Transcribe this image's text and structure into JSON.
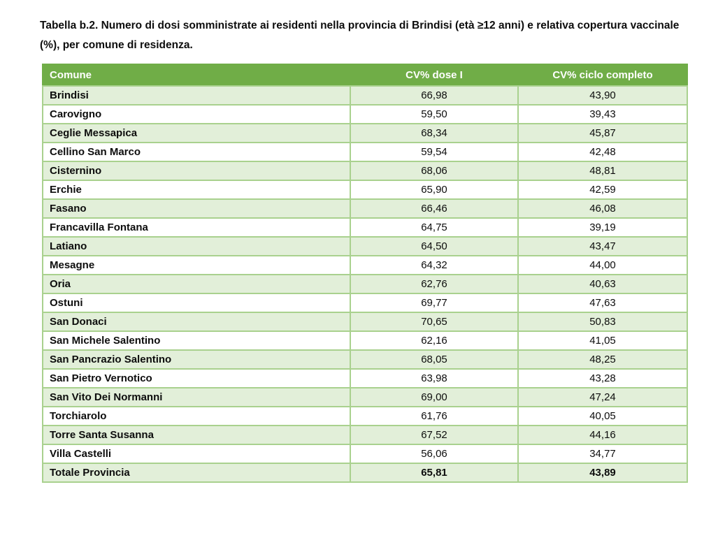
{
  "page": {
    "title": "Tabella b.2. Numero di dosi somministrate ai residenti nella provincia di Brindisi (età ≥12 anni) e relativa copertura vaccinale (%), per comune di residenza."
  },
  "colors": {
    "header_bg": "#70AD47",
    "header_text": "#FFFFFF",
    "row_bg": "#FFFFFF",
    "row_alt_bg": "#E2EFD9",
    "border": "#A9D18E",
    "text": "#0D0D0D"
  },
  "table": {
    "columns": [
      "Comune",
      "CV% dose I",
      "CV% ciclo completo"
    ],
    "rows": [
      {
        "comune": "Brindisi",
        "dose1": "66,98",
        "ciclo": "43,90"
      },
      {
        "comune": "Carovigno",
        "dose1": "59,50",
        "ciclo": "39,43"
      },
      {
        "comune": "Ceglie Messapica",
        "dose1": "68,34",
        "ciclo": "45,87"
      },
      {
        "comune": "Cellino San Marco",
        "dose1": "59,54",
        "ciclo": "42,48"
      },
      {
        "comune": "Cisternino",
        "dose1": "68,06",
        "ciclo": "48,81"
      },
      {
        "comune": "Erchie",
        "dose1": "65,90",
        "ciclo": "42,59"
      },
      {
        "comune": "Fasano",
        "dose1": "66,46",
        "ciclo": "46,08"
      },
      {
        "comune": "Francavilla Fontana",
        "dose1": "64,75",
        "ciclo": "39,19"
      },
      {
        "comune": "Latiano",
        "dose1": "64,50",
        "ciclo": "43,47"
      },
      {
        "comune": "Mesagne",
        "dose1": "64,32",
        "ciclo": "44,00"
      },
      {
        "comune": "Oria",
        "dose1": "62,76",
        "ciclo": "40,63"
      },
      {
        "comune": "Ostuni",
        "dose1": "69,77",
        "ciclo": "47,63"
      },
      {
        "comune": "San Donaci",
        "dose1": "70,65",
        "ciclo": "50,83"
      },
      {
        "comune": "San Michele Salentino",
        "dose1": "62,16",
        "ciclo": "41,05"
      },
      {
        "comune": "San Pancrazio Salentino",
        "dose1": "68,05",
        "ciclo": "48,25"
      },
      {
        "comune": "San Pietro Vernotico",
        "dose1": "63,98",
        "ciclo": "43,28"
      },
      {
        "comune": "San Vito Dei Normanni",
        "dose1": "69,00",
        "ciclo": "47,24"
      },
      {
        "comune": "Torchiarolo",
        "dose1": "61,76",
        "ciclo": "40,05"
      },
      {
        "comune": "Torre Santa Susanna",
        "dose1": "67,52",
        "ciclo": "44,16"
      },
      {
        "comune": "Villa Castelli",
        "dose1": "56,06",
        "ciclo": "34,77"
      }
    ],
    "total_row": {
      "comune": "Totale Provincia",
      "dose1": "65,81",
      "ciclo": "43,89"
    }
  }
}
